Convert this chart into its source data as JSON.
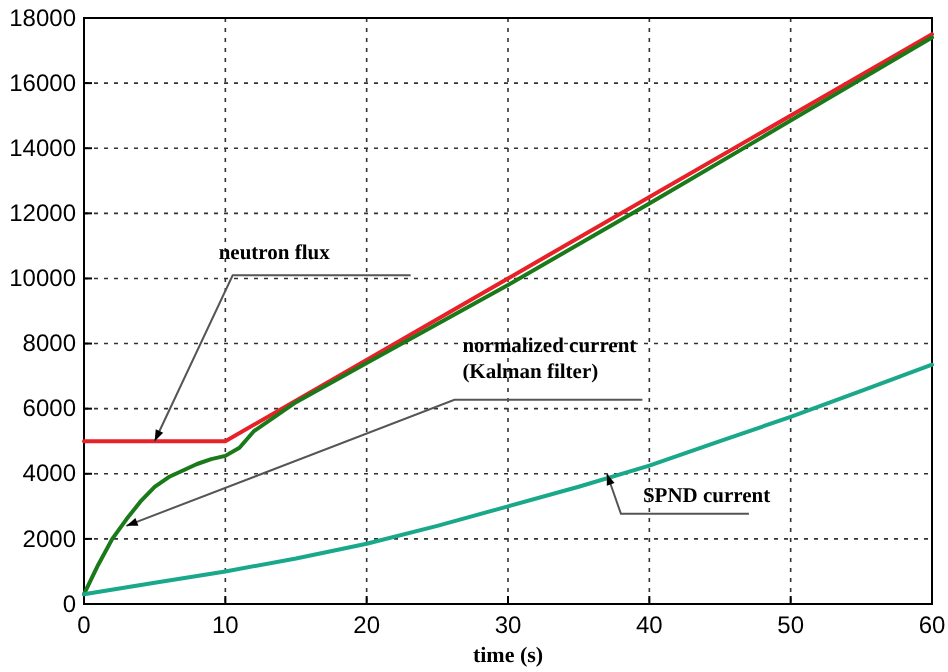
{
  "chart_data": {
    "type": "line",
    "xlabel": "time (s)",
    "xlim": [
      0,
      60
    ],
    "ylim": [
      0,
      18000
    ],
    "xticks": [
      0,
      10,
      20,
      30,
      40,
      50,
      60
    ],
    "yticks": [
      0,
      2000,
      4000,
      6000,
      8000,
      10000,
      12000,
      14000,
      16000,
      18000
    ],
    "grid": true,
    "line_style": "solid",
    "marker": "none",
    "series": [
      {
        "color": "#e82028",
        "x": [
          0,
          10,
          30,
          60
        ],
        "values": [
          5000,
          5000,
          10000,
          17500
        ]
      },
      {
        "color": "#1a7a1a",
        "x": [
          0,
          1,
          2,
          3,
          4,
          5,
          6,
          7,
          8,
          9,
          10,
          11,
          12,
          15,
          20,
          30,
          40,
          50,
          60
        ],
        "values": [
          300,
          1200,
          2000,
          2600,
          3150,
          3600,
          3900,
          4100,
          4300,
          4450,
          4550,
          4800,
          5300,
          6200,
          7400,
          9800,
          12300,
          14850,
          17400
        ]
      },
      {
        "color": "#1aa88a",
        "x": [
          0,
          5,
          10,
          15,
          20,
          25,
          30,
          35,
          40,
          45,
          50,
          55,
          60
        ],
        "values": [
          300,
          650,
          1000,
          1400,
          1850,
          2400,
          3000,
          3600,
          4250,
          5000,
          5750,
          6550,
          7350
        ]
      }
    ],
    "annotations": [
      {
        "text": "neutron flux",
        "x": 5,
        "y": 5000
      },
      {
        "text": "normalized current\n(Kalman filter)",
        "x": 3,
        "y": 2400
      },
      {
        "text": "SPND current",
        "x": 37,
        "y": 4000
      }
    ]
  }
}
